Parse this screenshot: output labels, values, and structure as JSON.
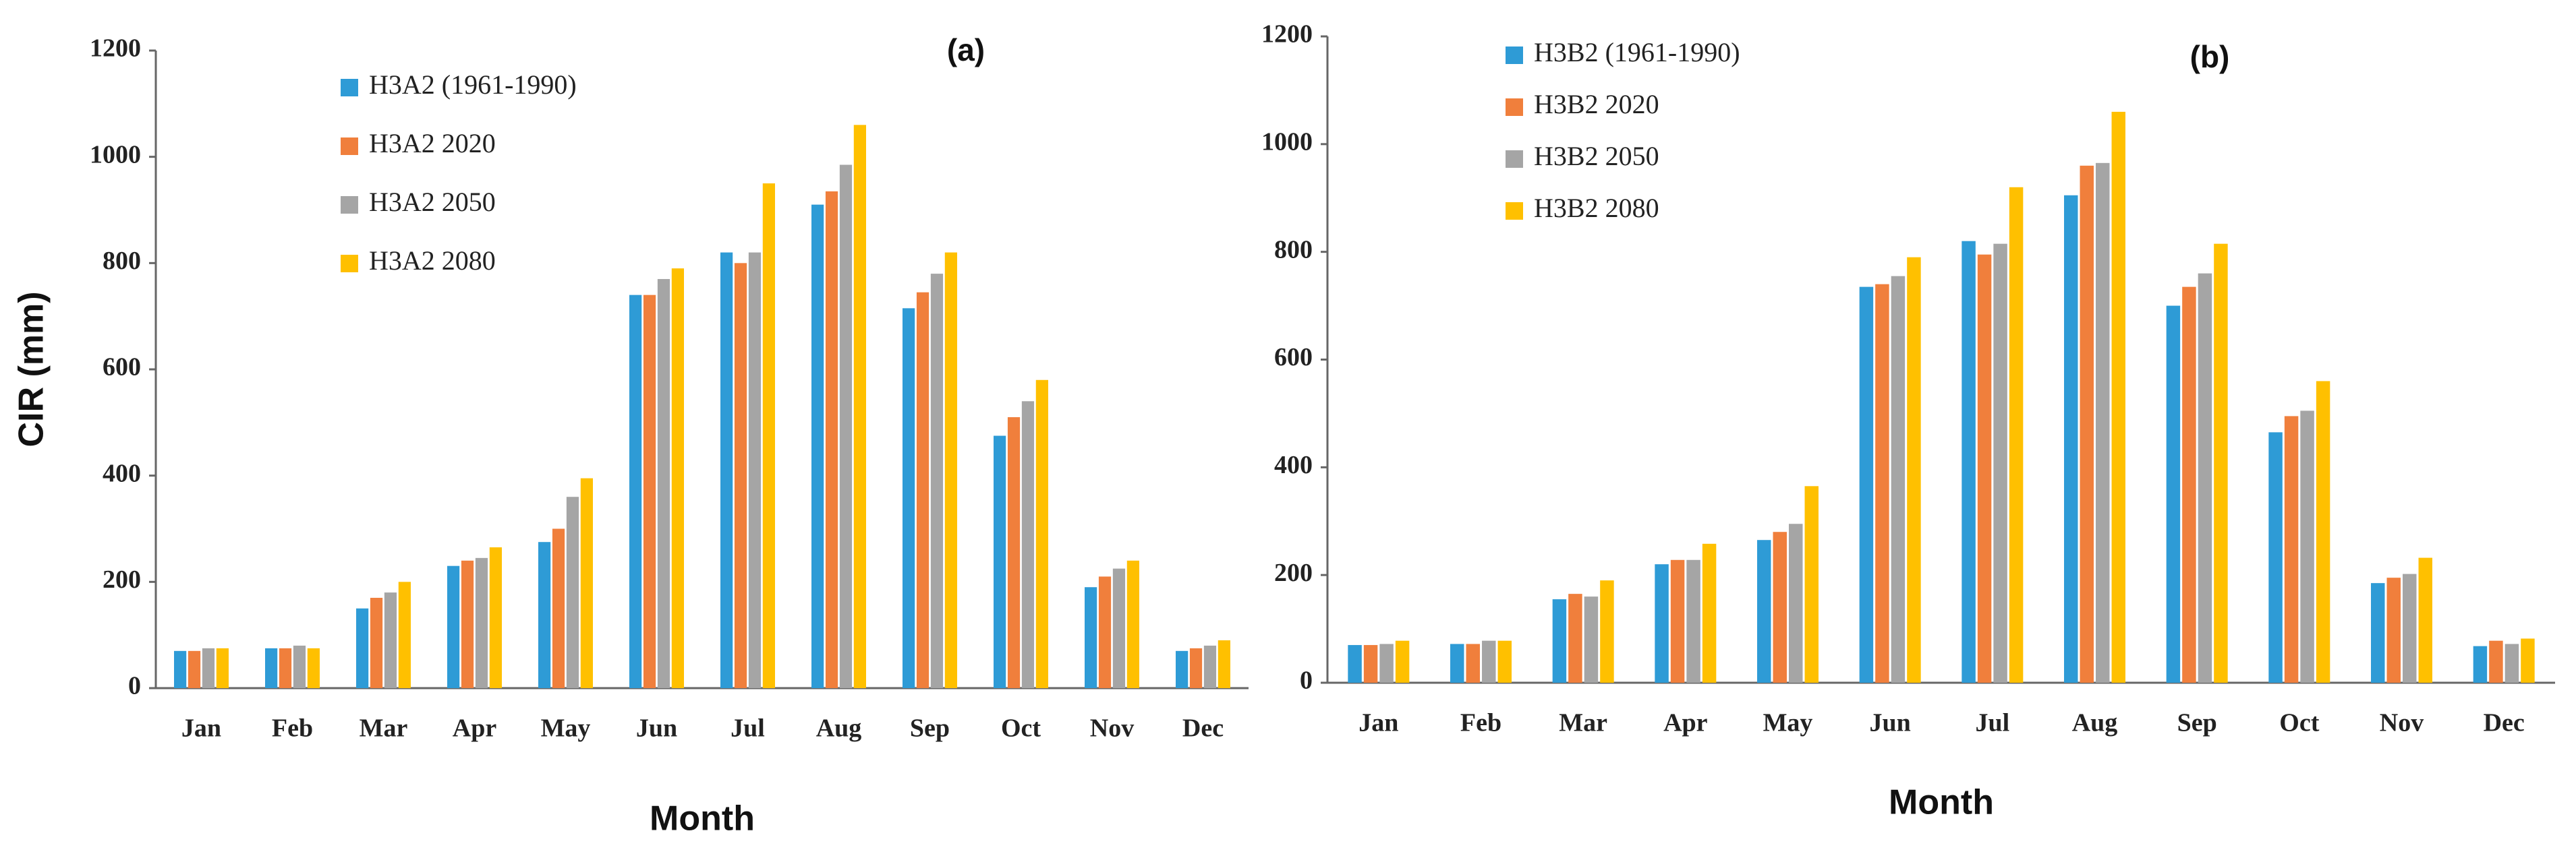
{
  "chart_data": [
    {
      "type": "bar",
      "title": "(a)",
      "x_label": "Month",
      "y_label": "CIR (mm)",
      "categories": [
        "Jan",
        "Feb",
        "Mar",
        "Apr",
        "May",
        "Jun",
        "Jul",
        "Aug",
        "Sep",
        "Oct",
        "Nov",
        "Dec"
      ],
      "series": [
        {
          "name": "H3A2 (1961-1990)",
          "color": "#2e9bd6",
          "values": [
            70,
            75,
            150,
            230,
            275,
            740,
            820,
            910,
            715,
            475,
            190,
            70
          ]
        },
        {
          "name": "H3A2 2020",
          "color": "#f07f3c",
          "values": [
            70,
            75,
            170,
            240,
            300,
            740,
            800,
            935,
            745,
            510,
            210,
            75
          ]
        },
        {
          "name": "H3A2 2050",
          "color": "#a5a5a5",
          "values": [
            75,
            80,
            180,
            245,
            360,
            770,
            820,
            985,
            780,
            540,
            225,
            80
          ]
        },
        {
          "name": "H3A2 2080",
          "color": "#ffc000",
          "values": [
            75,
            75,
            200,
            265,
            395,
            790,
            950,
            1060,
            820,
            580,
            240,
            90
          ]
        }
      ],
      "ylim": [
        0,
        1200
      ],
      "yticks": [
        0,
        200,
        400,
        600,
        800,
        1000,
        1200
      ]
    },
    {
      "type": "bar",
      "title": "(b)",
      "x_label": "Month",
      "categories": [
        "Jan",
        "Feb",
        "Mar",
        "Apr",
        "May",
        "Jun",
        "Jul",
        "Aug",
        "Sep",
        "Oct",
        "Nov",
        "Dec"
      ],
      "series": [
        {
          "name": "H3B2 (1961-1990)",
          "color": "#2e9bd6",
          "values": [
            70,
            72,
            155,
            220,
            265,
            735,
            820,
            905,
            700,
            465,
            185,
            68
          ]
        },
        {
          "name": "H3B2 2020",
          "color": "#f07f3c",
          "values": [
            70,
            72,
            165,
            228,
            280,
            740,
            795,
            960,
            735,
            495,
            195,
            78
          ]
        },
        {
          "name": "H3B2 2050",
          "color": "#a5a5a5",
          "values": [
            72,
            78,
            160,
            228,
            295,
            755,
            815,
            965,
            760,
            505,
            202,
            72
          ]
        },
        {
          "name": "H3B2 2080",
          "color": "#ffc000",
          "values": [
            78,
            78,
            190,
            258,
            365,
            790,
            920,
            1060,
            815,
            560,
            232,
            82
          ]
        }
      ],
      "ylim": [
        0,
        1200
      ],
      "yticks": [
        0,
        200,
        400,
        600,
        800,
        1000,
        1200
      ]
    }
  ]
}
